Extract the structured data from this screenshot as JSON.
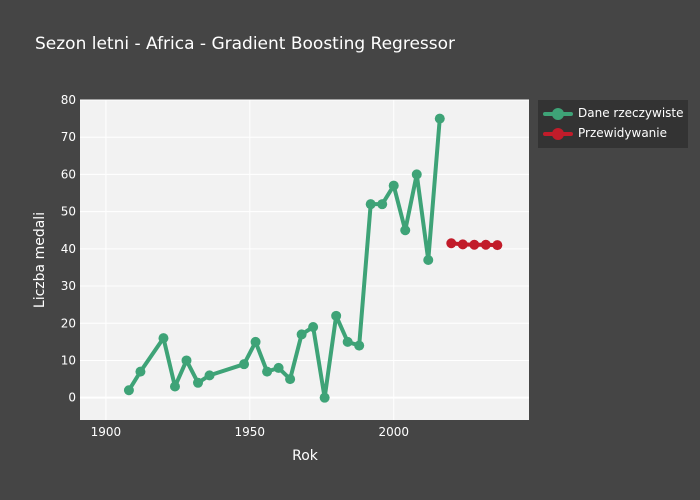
{
  "chart_data": {
    "type": "line",
    "title": "Sezon letni - Africa - Gradient Boosting Regressor",
    "xlabel": "Rok",
    "ylabel": "Liczba medali",
    "xlim": [
      1891,
      2047
    ],
    "ylim": [
      -6,
      80
    ],
    "xticks": [
      1900,
      1950,
      2000
    ],
    "yticks": [
      0,
      10,
      20,
      30,
      40,
      50,
      60,
      70,
      80
    ],
    "grid": true,
    "legend_position": "top-right outside",
    "series": [
      {
        "name": "Dane rzeczywiste",
        "color": "#3ea377",
        "x": [
          1908,
          1912,
          1920,
          1924,
          1928,
          1932,
          1936,
          1948,
          1952,
          1956,
          1960,
          1964,
          1968,
          1972,
          1976,
          1980,
          1984,
          1988,
          1992,
          1996,
          2000,
          2004,
          2008,
          2012,
          2016
        ],
        "y": [
          2,
          7,
          16,
          3,
          10,
          4,
          6,
          9,
          15,
          7,
          8,
          5,
          17,
          19,
          0,
          22,
          15,
          14,
          52,
          52,
          57,
          45,
          60,
          37,
          75
        ]
      },
      {
        "name": "Przewidywanie",
        "color": "#c21c2a",
        "x": [
          2020,
          2024,
          2028,
          2032,
          2036
        ],
        "y": [
          41.5,
          41.2,
          41.1,
          41.1,
          41.0
        ]
      }
    ]
  }
}
